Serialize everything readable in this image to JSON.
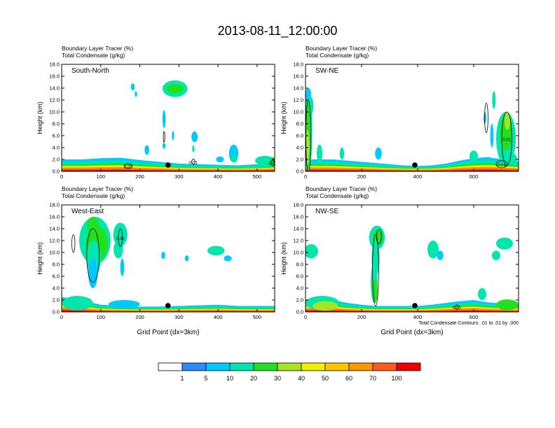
{
  "title": "2013-08-11_12:00:00",
  "colors": {
    "bins": [
      "#ffffff",
      "#2e8bff",
      "#00c9ff",
      "#00e6ac",
      "#20e020",
      "#a6e620",
      "#f0f000",
      "#ffc400",
      "#ff9800",
      "#ff5a1e",
      "#ee0000"
    ],
    "contour": "#000000",
    "marker": "#000000"
  },
  "colorbar": {
    "labels": [
      "1",
      "5",
      "10",
      "20",
      "30",
      "40",
      "50",
      "60",
      "70",
      "100"
    ],
    "levels": [
      1,
      5,
      10,
      20,
      30,
      40,
      50,
      60,
      70,
      100
    ]
  },
  "contour_note": "Total Condensate Contours: .01 to .01 by .000",
  "chart_data": [
    {
      "type": "heatmap",
      "panel_label": "South-North",
      "subtitle_left": "Boundary Layer Tracer",
      "subtitle_unit": "(%)",
      "subtitle2_left": "Total Condensate",
      "subtitle2_unit": "(g/kg)",
      "xlabel": "",
      "ylabel": "Height (km)",
      "xlim": [
        0,
        545
      ],
      "ylim": [
        0,
        18
      ],
      "xticks": [
        0,
        100,
        200,
        300,
        400,
        500
      ],
      "yticks": [
        "0.0",
        "2.0",
        "4.0",
        "6.0",
        "8.0",
        "10.0",
        "12.0",
        "14.0",
        "16.0",
        "18.0"
      ],
      "marker_x": 272,
      "contour_labels": [
        "0.01",
        "0.01",
        "0.01"
      ],
      "blobs": [
        {
          "x": 290,
          "y": 13.9,
          "rx": 32,
          "ry": 1.4,
          "v": 10
        },
        {
          "x": 290,
          "y": 13.9,
          "rx": 22,
          "ry": 0.8,
          "v": 20
        },
        {
          "x": 182,
          "y": 14.2,
          "rx": 5,
          "ry": 0.6,
          "v": 5
        },
        {
          "x": 190,
          "y": 13.0,
          "rx": 3,
          "ry": 0.5,
          "v": 5
        },
        {
          "x": 262,
          "y": 8.8,
          "rx": 4,
          "ry": 1.5,
          "v": 5
        },
        {
          "x": 285,
          "y": 6.0,
          "rx": 3,
          "ry": 0.8,
          "v": 5
        },
        {
          "x": 340,
          "y": 5.8,
          "rx": 8,
          "ry": 0.9,
          "v": 5
        },
        {
          "x": 440,
          "y": 3.0,
          "rx": 12,
          "ry": 1.5,
          "v": 5
        },
        {
          "x": 442,
          "y": 2.2,
          "rx": 8,
          "ry": 0.7,
          "v": 10
        },
        {
          "x": 337,
          "y": 3.8,
          "rx": 3,
          "ry": 0.6,
          "v": 10
        },
        {
          "x": 218,
          "y": 3.6,
          "rx": 6,
          "ry": 0.8,
          "v": 5
        },
        {
          "x": 262,
          "y": 4.3,
          "rx": 4,
          "ry": 0.5,
          "v": 5
        },
        {
          "x": 405,
          "y": 2.0,
          "rx": 10,
          "ry": 0.5,
          "v": 5
        },
        {
          "x": 520,
          "y": 1.8,
          "rx": 25,
          "ry": 0.8,
          "v": 10
        },
        {
          "x": 540,
          "y": 1.8,
          "rx": 8,
          "ry": 0.6,
          "v": 20
        }
      ],
      "surface": [
        [
          0,
          2.0
        ],
        [
          50,
          2.0
        ],
        [
          100,
          2.2
        ],
        [
          150,
          2.3
        ],
        [
          200,
          1.9
        ],
        [
          250,
          1.6
        ],
        [
          300,
          1.3
        ],
        [
          350,
          1.2
        ],
        [
          400,
          1.1
        ],
        [
          450,
          1.0
        ],
        [
          500,
          1.2
        ],
        [
          545,
          1.4
        ]
      ],
      "contours": [
        {
          "x": 262,
          "y": 5.8,
          "rx": 2,
          "ry": 0.9
        },
        {
          "x": 337,
          "y": 1.6,
          "rx": 4,
          "ry": 0.5
        },
        {
          "x": 540,
          "y": 1.4,
          "rx": 4,
          "ry": 0.5
        },
        {
          "x": 170,
          "y": 0.9,
          "rx": 10,
          "ry": 0.4
        }
      ]
    },
    {
      "type": "heatmap",
      "panel_label": "SW-NE",
      "subtitle_left": "Boundary Layer Tracer",
      "subtitle_unit": "(%)",
      "subtitle2_left": "Total Condensate",
      "subtitle2_unit": "(g/kg)",
      "xlabel": "",
      "ylabel": "Height (km)",
      "xlim": [
        0,
        760
      ],
      "ylim": [
        0,
        18
      ],
      "xticks": [
        0,
        200,
        400,
        600
      ],
      "yticks": [
        "0.0",
        "2.0",
        "4.0",
        "6.0",
        "8.0",
        "10.0",
        "12.0",
        "14.0",
        "16.0",
        "18.0"
      ],
      "marker_x": 390,
      "contour_labels": [
        "0.01",
        "0.01"
      ],
      "blobs": [
        {
          "x": 10,
          "y": 7.0,
          "rx": 14,
          "ry": 7,
          "v": 10
        },
        {
          "x": 8,
          "y": 6.5,
          "rx": 8,
          "ry": 6,
          "v": 20
        },
        {
          "x": 8,
          "y": 4.0,
          "rx": 6,
          "ry": 3,
          "v": 30
        },
        {
          "x": 10,
          "y": 13.0,
          "rx": 10,
          "ry": 1.0,
          "v": 5
        },
        {
          "x": 20,
          "y": 11.0,
          "rx": 8,
          "ry": 1.5,
          "v": 10
        },
        {
          "x": 715,
          "y": 5.5,
          "rx": 35,
          "ry": 4.5,
          "v": 10
        },
        {
          "x": 715,
          "y": 6.5,
          "rx": 22,
          "ry": 3.0,
          "v": 20
        },
        {
          "x": 720,
          "y": 8.5,
          "rx": 10,
          "ry": 1.5,
          "v": 30
        },
        {
          "x": 672,
          "y": 12.0,
          "rx": 6,
          "ry": 1.5,
          "v": 10
        },
        {
          "x": 640,
          "y": 9.0,
          "rx": 5,
          "ry": 1.0,
          "v": 5
        },
        {
          "x": 665,
          "y": 6.0,
          "rx": 6,
          "ry": 2.0,
          "v": 5
        },
        {
          "x": 50,
          "y": 3.0,
          "rx": 10,
          "ry": 1.5,
          "v": 10
        },
        {
          "x": 130,
          "y": 3.0,
          "rx": 8,
          "ry": 1.0,
          "v": 10
        },
        {
          "x": 260,
          "y": 3.0,
          "rx": 12,
          "ry": 1.0,
          "v": 5
        },
        {
          "x": 600,
          "y": 2.5,
          "rx": 15,
          "ry": 1.0,
          "v": 10
        },
        {
          "x": 740,
          "y": 2.0,
          "rx": 15,
          "ry": 1.0,
          "v": 10
        }
      ],
      "surface": [
        [
          0,
          2.0
        ],
        [
          50,
          2.0
        ],
        [
          100,
          2.0
        ],
        [
          150,
          1.8
        ],
        [
          200,
          1.6
        ],
        [
          250,
          1.4
        ],
        [
          300,
          1.2
        ],
        [
          350,
          1.0
        ],
        [
          400,
          0.9
        ],
        [
          450,
          1.0
        ],
        [
          500,
          1.3
        ],
        [
          550,
          1.8
        ],
        [
          600,
          2.2
        ],
        [
          650,
          2.4
        ],
        [
          700,
          2.0
        ],
        [
          760,
          1.6
        ]
      ],
      "contours": [
        {
          "x": 10,
          "y": 6.0,
          "rx": 9,
          "ry": 6
        },
        {
          "x": 645,
          "y": 9.0,
          "rx": 6,
          "ry": 2.5
        },
        {
          "x": 718,
          "y": 5.5,
          "rx": 18,
          "ry": 4.5
        },
        {
          "x": 700,
          "y": 1.2,
          "rx": 20,
          "ry": 0.6
        }
      ]
    },
    {
      "type": "heatmap",
      "panel_label": "West-East",
      "subtitle_left": "Boundary Layer Tracer",
      "subtitle_unit": "(%)",
      "subtitle2_left": "Total Condensate",
      "subtitle2_unit": "(g/kg)",
      "xlabel": "Grid Point (dx=3km)",
      "ylabel": "Height (km)",
      "xlim": [
        0,
        545
      ],
      "ylim": [
        0,
        18
      ],
      "xticks": [
        0,
        100,
        200,
        300,
        400,
        500
      ],
      "yticks": [
        "0.0",
        "2.0",
        "4.0",
        "6.0",
        "8.0",
        "10.0",
        "12.0",
        "14.0",
        "16.0",
        "18.0"
      ],
      "marker_x": 272,
      "contour_labels": [
        "0.01"
      ],
      "blobs": [
        {
          "x": 85,
          "y": 12.0,
          "rx": 40,
          "ry": 4.0,
          "v": 10
        },
        {
          "x": 90,
          "y": 11.5,
          "rx": 28,
          "ry": 3.0,
          "v": 20
        },
        {
          "x": 80,
          "y": 14.5,
          "rx": 15,
          "ry": 1.5,
          "v": 20
        },
        {
          "x": 82,
          "y": 9.0,
          "rx": 18,
          "ry": 3.0,
          "v": 10
        },
        {
          "x": 80,
          "y": 6.5,
          "rx": 12,
          "ry": 2.5,
          "v": 5
        },
        {
          "x": 150,
          "y": 13.0,
          "rx": 18,
          "ry": 2.0,
          "v": 10
        },
        {
          "x": 145,
          "y": 10.5,
          "rx": 12,
          "ry": 1.5,
          "v": 10
        },
        {
          "x": 155,
          "y": 7.5,
          "rx": 5,
          "ry": 1.5,
          "v": 5
        },
        {
          "x": 260,
          "y": 9.5,
          "rx": 5,
          "ry": 0.6,
          "v": 5
        },
        {
          "x": 320,
          "y": 9.0,
          "rx": 5,
          "ry": 0.5,
          "v": 5
        },
        {
          "x": 395,
          "y": 10.3,
          "rx": 22,
          "ry": 0.8,
          "v": 10
        },
        {
          "x": 425,
          "y": 9.0,
          "rx": 10,
          "ry": 0.5,
          "v": 5
        },
        {
          "x": 40,
          "y": 1.5,
          "rx": 40,
          "ry": 1.2,
          "v": 10
        },
        {
          "x": 160,
          "y": 1.3,
          "rx": 40,
          "ry": 0.7,
          "v": 5
        }
      ],
      "surface": [
        [
          0,
          2.5
        ],
        [
          50,
          2.0
        ],
        [
          100,
          1.2
        ],
        [
          150,
          1.0
        ],
        [
          200,
          0.9
        ],
        [
          250,
          0.9
        ],
        [
          300,
          1.0
        ],
        [
          350,
          1.1
        ],
        [
          400,
          1.2
        ],
        [
          450,
          1.0
        ],
        [
          500,
          1.0
        ],
        [
          545,
          1.0
        ]
      ],
      "contours": [
        {
          "x": 30,
          "y": 11.5,
          "rx": 4,
          "ry": 1.5
        },
        {
          "x": 80,
          "y": 9.5,
          "rx": 16,
          "ry": 4.5
        },
        {
          "x": 150,
          "y": 12.5,
          "rx": 5,
          "ry": 1.5
        }
      ]
    },
    {
      "type": "heatmap",
      "panel_label": "NW-SE",
      "subtitle_left": "Boundary Layer Tracer",
      "subtitle_unit": "(%)",
      "subtitle2_left": "Total Condensate",
      "subtitle2_unit": "(g/kg)",
      "xlabel": "Grid Point (dx=3km)",
      "ylabel": "Height (km)",
      "xlim": [
        0,
        760
      ],
      "ylim": [
        0,
        18
      ],
      "xticks": [
        0,
        200,
        400,
        600
      ],
      "yticks": [
        "0.0",
        "2.0",
        "4.0",
        "6.0",
        "8.0",
        "10.0",
        "12.0",
        "14.0",
        "16.0",
        "18.0"
      ],
      "marker_x": 390,
      "contour_labels": [
        "0.01"
      ],
      "blobs": [
        {
          "x": 255,
          "y": 12.5,
          "rx": 28,
          "ry": 2.0,
          "v": 10
        },
        {
          "x": 258,
          "y": 12.5,
          "rx": 18,
          "ry": 1.3,
          "v": 20
        },
        {
          "x": 250,
          "y": 9.0,
          "rx": 14,
          "ry": 3.0,
          "v": 10
        },
        {
          "x": 245,
          "y": 5.0,
          "rx": 12,
          "ry": 3.5,
          "v": 10
        },
        {
          "x": 248,
          "y": 3.5,
          "rx": 9,
          "ry": 2.0,
          "v": 20
        },
        {
          "x": 20,
          "y": 10.2,
          "rx": 25,
          "ry": 1.2,
          "v": 10
        },
        {
          "x": 455,
          "y": 10.5,
          "rx": 20,
          "ry": 1.5,
          "v": 10
        },
        {
          "x": 480,
          "y": 9.5,
          "rx": 12,
          "ry": 0.8,
          "v": 5
        },
        {
          "x": 710,
          "y": 11.5,
          "rx": 30,
          "ry": 1.0,
          "v": 10
        },
        {
          "x": 680,
          "y": 9.5,
          "rx": 15,
          "ry": 0.8,
          "v": 10
        },
        {
          "x": 630,
          "y": 3.0,
          "rx": 15,
          "ry": 1.0,
          "v": 10
        },
        {
          "x": 60,
          "y": 1.5,
          "rx": 60,
          "ry": 1.2,
          "v": 10
        },
        {
          "x": 70,
          "y": 1.0,
          "rx": 45,
          "ry": 0.8,
          "v": 30
        },
        {
          "x": 720,
          "y": 1.2,
          "rx": 40,
          "ry": 0.9,
          "v": 20
        }
      ],
      "surface": [
        [
          0,
          2.0
        ],
        [
          50,
          2.2
        ],
        [
          100,
          2.0
        ],
        [
          150,
          1.5
        ],
        [
          200,
          1.2
        ],
        [
          250,
          1.0
        ],
        [
          300,
          1.0
        ],
        [
          350,
          1.0
        ],
        [
          400,
          1.0
        ],
        [
          450,
          1.2
        ],
        [
          500,
          1.5
        ],
        [
          550,
          1.8
        ],
        [
          600,
          2.0
        ],
        [
          650,
          1.6
        ],
        [
          700,
          1.4
        ],
        [
          760,
          1.2
        ]
      ],
      "contours": [
        {
          "x": 250,
          "y": 7.0,
          "rx": 11,
          "ry": 6.0
        },
        {
          "x": 262,
          "y": 12.7,
          "rx": 9,
          "ry": 1.2
        },
        {
          "x": 540,
          "y": 0.8,
          "rx": 6,
          "ry": 0.4
        }
      ]
    }
  ]
}
